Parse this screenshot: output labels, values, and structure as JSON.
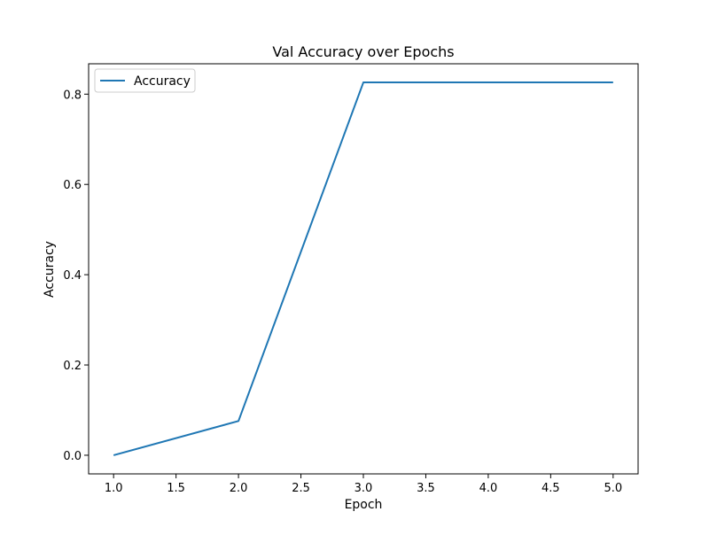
{
  "chart_data": {
    "type": "line",
    "title": "Val Accuracy over Epochs",
    "xlabel": "Epoch",
    "ylabel": "Accuracy",
    "xlim": [
      0.8,
      5.2
    ],
    "ylim": [
      -0.0413,
      0.8673
    ],
    "xticks": [
      1.0,
      1.5,
      2.0,
      2.5,
      3.0,
      3.5,
      4.0,
      4.5,
      5.0
    ],
    "xtick_labels": [
      "1.0",
      "1.5",
      "2.0",
      "2.5",
      "3.0",
      "3.5",
      "4.0",
      "4.5",
      "5.0"
    ],
    "yticks": [
      0.0,
      0.2,
      0.4,
      0.6,
      0.8
    ],
    "ytick_labels": [
      "0.0",
      "0.2",
      "0.4",
      "0.6",
      "0.8"
    ],
    "grid": false,
    "legend_position": "upper-left",
    "series": [
      {
        "name": "Accuracy",
        "color": "#1f77b4",
        "x": [
          1,
          2,
          3,
          4,
          5
        ],
        "y": [
          0.0,
          0.0758,
          0.826,
          0.826,
          0.826
        ]
      }
    ]
  }
}
